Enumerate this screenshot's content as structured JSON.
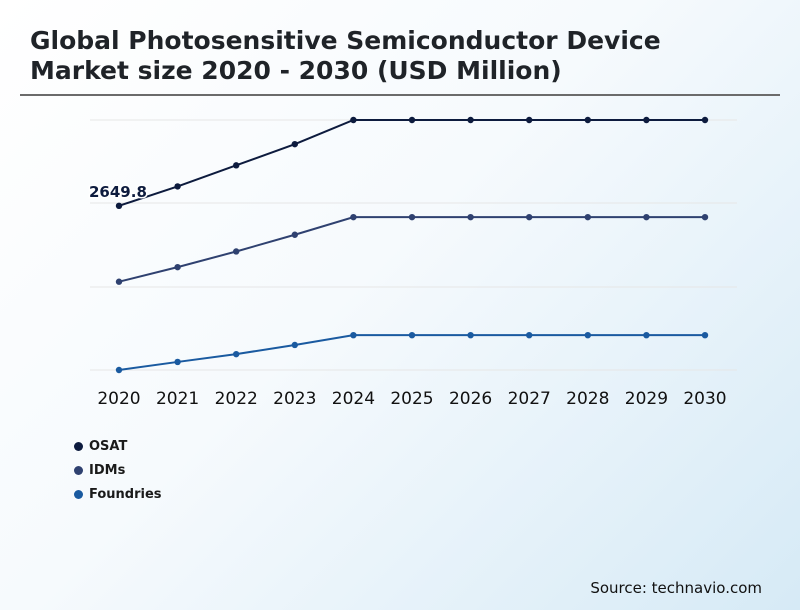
{
  "title": "Global Photosensitive Semiconductor Device Market size 2020 - 2030 (USD Million)",
  "source": "Source: technavio.com",
  "colors": {
    "osat": "#0d1b3e",
    "idms": "#2f4170",
    "foundries": "#1a5aa0",
    "grid": "#e6e6e6",
    "axis_text": "#111111"
  },
  "chart_data": {
    "type": "line",
    "title": "Global Photosensitive Semiconductor Device Market size 2020 - 2030 (USD Million)",
    "xlabel": "",
    "ylabel": "",
    "categories": [
      "2020",
      "2021",
      "2022",
      "2023",
      "2024",
      "2025",
      "2026",
      "2027",
      "2028",
      "2029",
      "2030"
    ],
    "ylim": [
      0,
      3900
    ],
    "grid": true,
    "legend_position": "bottom-left",
    "series": [
      {
        "name": "OSAT",
        "color": "#0d1b3e",
        "values": [
          2649.8,
          2963,
          3303,
          3645,
          4035,
          4035,
          4035,
          4035,
          4035,
          4035,
          4035
        ]
      },
      {
        "name": "IDMs",
        "color": "#2f4170",
        "values": [
          1425,
          1660,
          1913,
          2183,
          2467,
          2467,
          2467,
          2467,
          2467,
          2467,
          2467
        ]
      },
      {
        "name": "Foundries",
        "color": "#1a5aa0",
        "values": [
          0,
          130,
          256,
          404,
          562,
          562,
          562,
          562,
          562,
          562,
          562
        ]
      }
    ],
    "annotations": [
      {
        "series": "OSAT",
        "index": 0,
        "text": "2649.8"
      }
    ]
  }
}
